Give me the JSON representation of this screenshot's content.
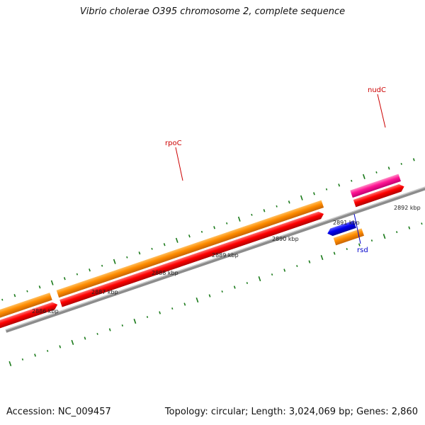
{
  "title": "Vibrio cholerae O395 chromosome 2, complete sequence",
  "footer": {
    "accession": "Accession: NC_009457",
    "summary": "Topology: circular; Length: 3,024,069 bp; Genes: 2,860"
  },
  "scale_labels": [
    "2886 kbp",
    "2887 kbp",
    "2888 kbp",
    "2889 kbp",
    "2890 kbp",
    "2891 kbp",
    "2892 kbp"
  ],
  "genes": [
    {
      "name": "rpoC",
      "label_color": "#cc0000"
    },
    {
      "name": "nudC",
      "label_color": "#cc0000"
    },
    {
      "name": "rsd",
      "label_color": "#0000cc"
    }
  ],
  "colors": {
    "backbone": "#8c8c8c",
    "forward_gene": "#ff8c00",
    "cds": "#ff0000",
    "reverse_gene": "#0000ee",
    "highlight_gene": "#ff1493",
    "tick": "#1a7a1a"
  }
}
